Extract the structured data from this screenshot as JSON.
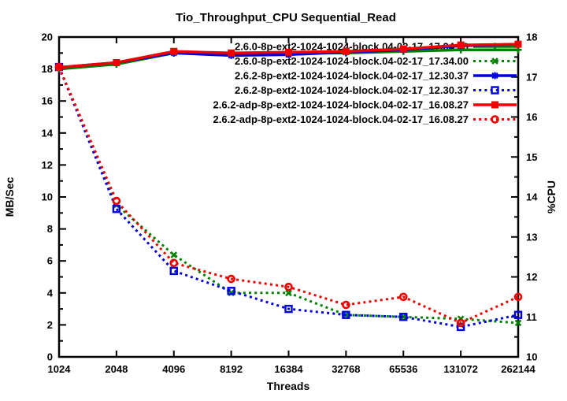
{
  "title": "Tio_Throughput_CPU Sequential_Read",
  "colors": {
    "kernel_260": "#008000",
    "kernel_262": "#0000dd",
    "kernel_262_adp": "#ee0000",
    "axis": "#000000",
    "background": "#ffffff"
  },
  "chart_data": {
    "type": "line",
    "title": "Tio_Throughput_CPU Sequential_Read",
    "xlabel": "Threads",
    "ylabel_left": "MB/Sec",
    "ylabel_right": "%CPU",
    "x_scale": "log2",
    "categories": [
      1024,
      2048,
      4096,
      8192,
      16384,
      32768,
      65536,
      131072,
      262144
    ],
    "axes": {
      "left": {
        "label": "MB/Sec",
        "min": 0,
        "max": 20,
        "major_step": 2,
        "minor_step": 1
      },
      "right": {
        "label": "%CPU",
        "min": 10,
        "max": 18,
        "major_step": 1,
        "minor_step": 0.5
      }
    },
    "grid": false,
    "legend_position": "top-right-inside",
    "series": [
      {
        "label": "2.6.0-8p-ext2-1024-1024-block.04-02-17_17.34.00",
        "metric": "throughput-mb-sec",
        "axis": "left",
        "color": "#008000",
        "line": "solid",
        "marker": "plus",
        "values": [
          18.0,
          18.3,
          19.0,
          18.95,
          19.0,
          19.0,
          19.1,
          19.2,
          19.2
        ]
      },
      {
        "label": "2.6.0-8p-ext2-1024-1024-block.04-02-17_17.34.00",
        "metric": "cpu-percent",
        "axis": "right",
        "color": "#008000",
        "line": "dotted",
        "marker": "cross",
        "values": [
          17.25,
          13.8,
          12.55,
          11.6,
          11.6,
          11.05,
          11.0,
          10.95,
          10.85
        ]
      },
      {
        "label": "2.6.2-8p-ext2-1024-1024-block.04-02-17_12.30.37",
        "metric": "throughput-mb-sec",
        "axis": "left",
        "color": "#0000dd",
        "line": "solid",
        "marker": "asterisk",
        "values": [
          18.1,
          18.4,
          19.0,
          18.85,
          18.9,
          19.05,
          19.2,
          19.45,
          19.55
        ]
      },
      {
        "label": "2.6.2-8p-ext2-1024-1024-block.04-02-17_12.30.37",
        "metric": "cpu-percent",
        "axis": "right",
        "color": "#0000dd",
        "line": "dotted",
        "marker": "open-square",
        "values": [
          17.25,
          13.7,
          12.15,
          11.65,
          11.2,
          11.05,
          11.0,
          10.75,
          11.05
        ]
      },
      {
        "label": "2.6.2-adp-8p-ext2-1024-1024-block.04-02-17_16.08.27",
        "metric": "throughput-mb-sec",
        "axis": "left",
        "color": "#ee0000",
        "line": "solid",
        "marker": "filled-square",
        "values": [
          18.1,
          18.4,
          19.1,
          19.0,
          19.05,
          19.1,
          19.25,
          19.5,
          19.55
        ]
      },
      {
        "label": "2.6.2-adp-8p-ext2-1024-1024-block.04-02-17_16.08.27",
        "metric": "cpu-percent",
        "axis": "right",
        "color": "#ee0000",
        "line": "dotted",
        "marker": "open-circle",
        "values": [
          17.25,
          13.9,
          12.35,
          11.95,
          11.75,
          11.3,
          11.5,
          10.85,
          11.5
        ]
      }
    ]
  }
}
